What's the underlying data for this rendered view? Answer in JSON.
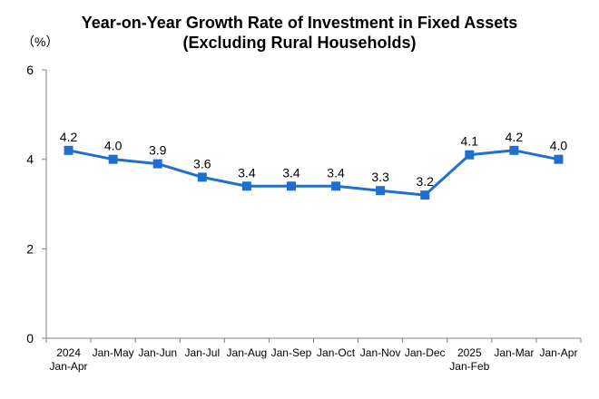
{
  "chart_data": {
    "type": "line",
    "title": "Year-on-Year Growth Rate of Investment in Fixed Assets",
    "subtitle": "(Excluding Rural Households)",
    "ylabel": "（%）",
    "xlabel": "",
    "ylim": [
      0,
      6
    ],
    "yticks": [
      0,
      2,
      4,
      6
    ],
    "grid": false,
    "categories": [
      [
        "2024",
        "Jan-Apr"
      ],
      [
        "Jan-May"
      ],
      [
        "Jan-Jun"
      ],
      [
        "Jan-Jul"
      ],
      [
        "Jan-Aug"
      ],
      [
        "Jan-Sep"
      ],
      [
        "Jan-Oct"
      ],
      [
        "Jan-Nov"
      ],
      [
        "Jan-Dec"
      ],
      [
        "2025",
        "Jan-Feb"
      ],
      [
        "Jan-Mar"
      ],
      [
        "Jan-Apr"
      ]
    ],
    "values": [
      4.2,
      4.0,
      3.9,
      3.6,
      3.4,
      3.4,
      3.4,
      3.3,
      3.2,
      4.1,
      4.2,
      4.0
    ],
    "data_labels": [
      "4.2",
      "4.0",
      "3.9",
      "3.6",
      "3.4",
      "3.4",
      "3.4",
      "3.3",
      "3.2",
      "4.1",
      "4.2",
      "4.0"
    ],
    "line_color": "#1f6fd1",
    "marker_color": "#1f6fd1",
    "axis_color": "#7f7f7f"
  }
}
